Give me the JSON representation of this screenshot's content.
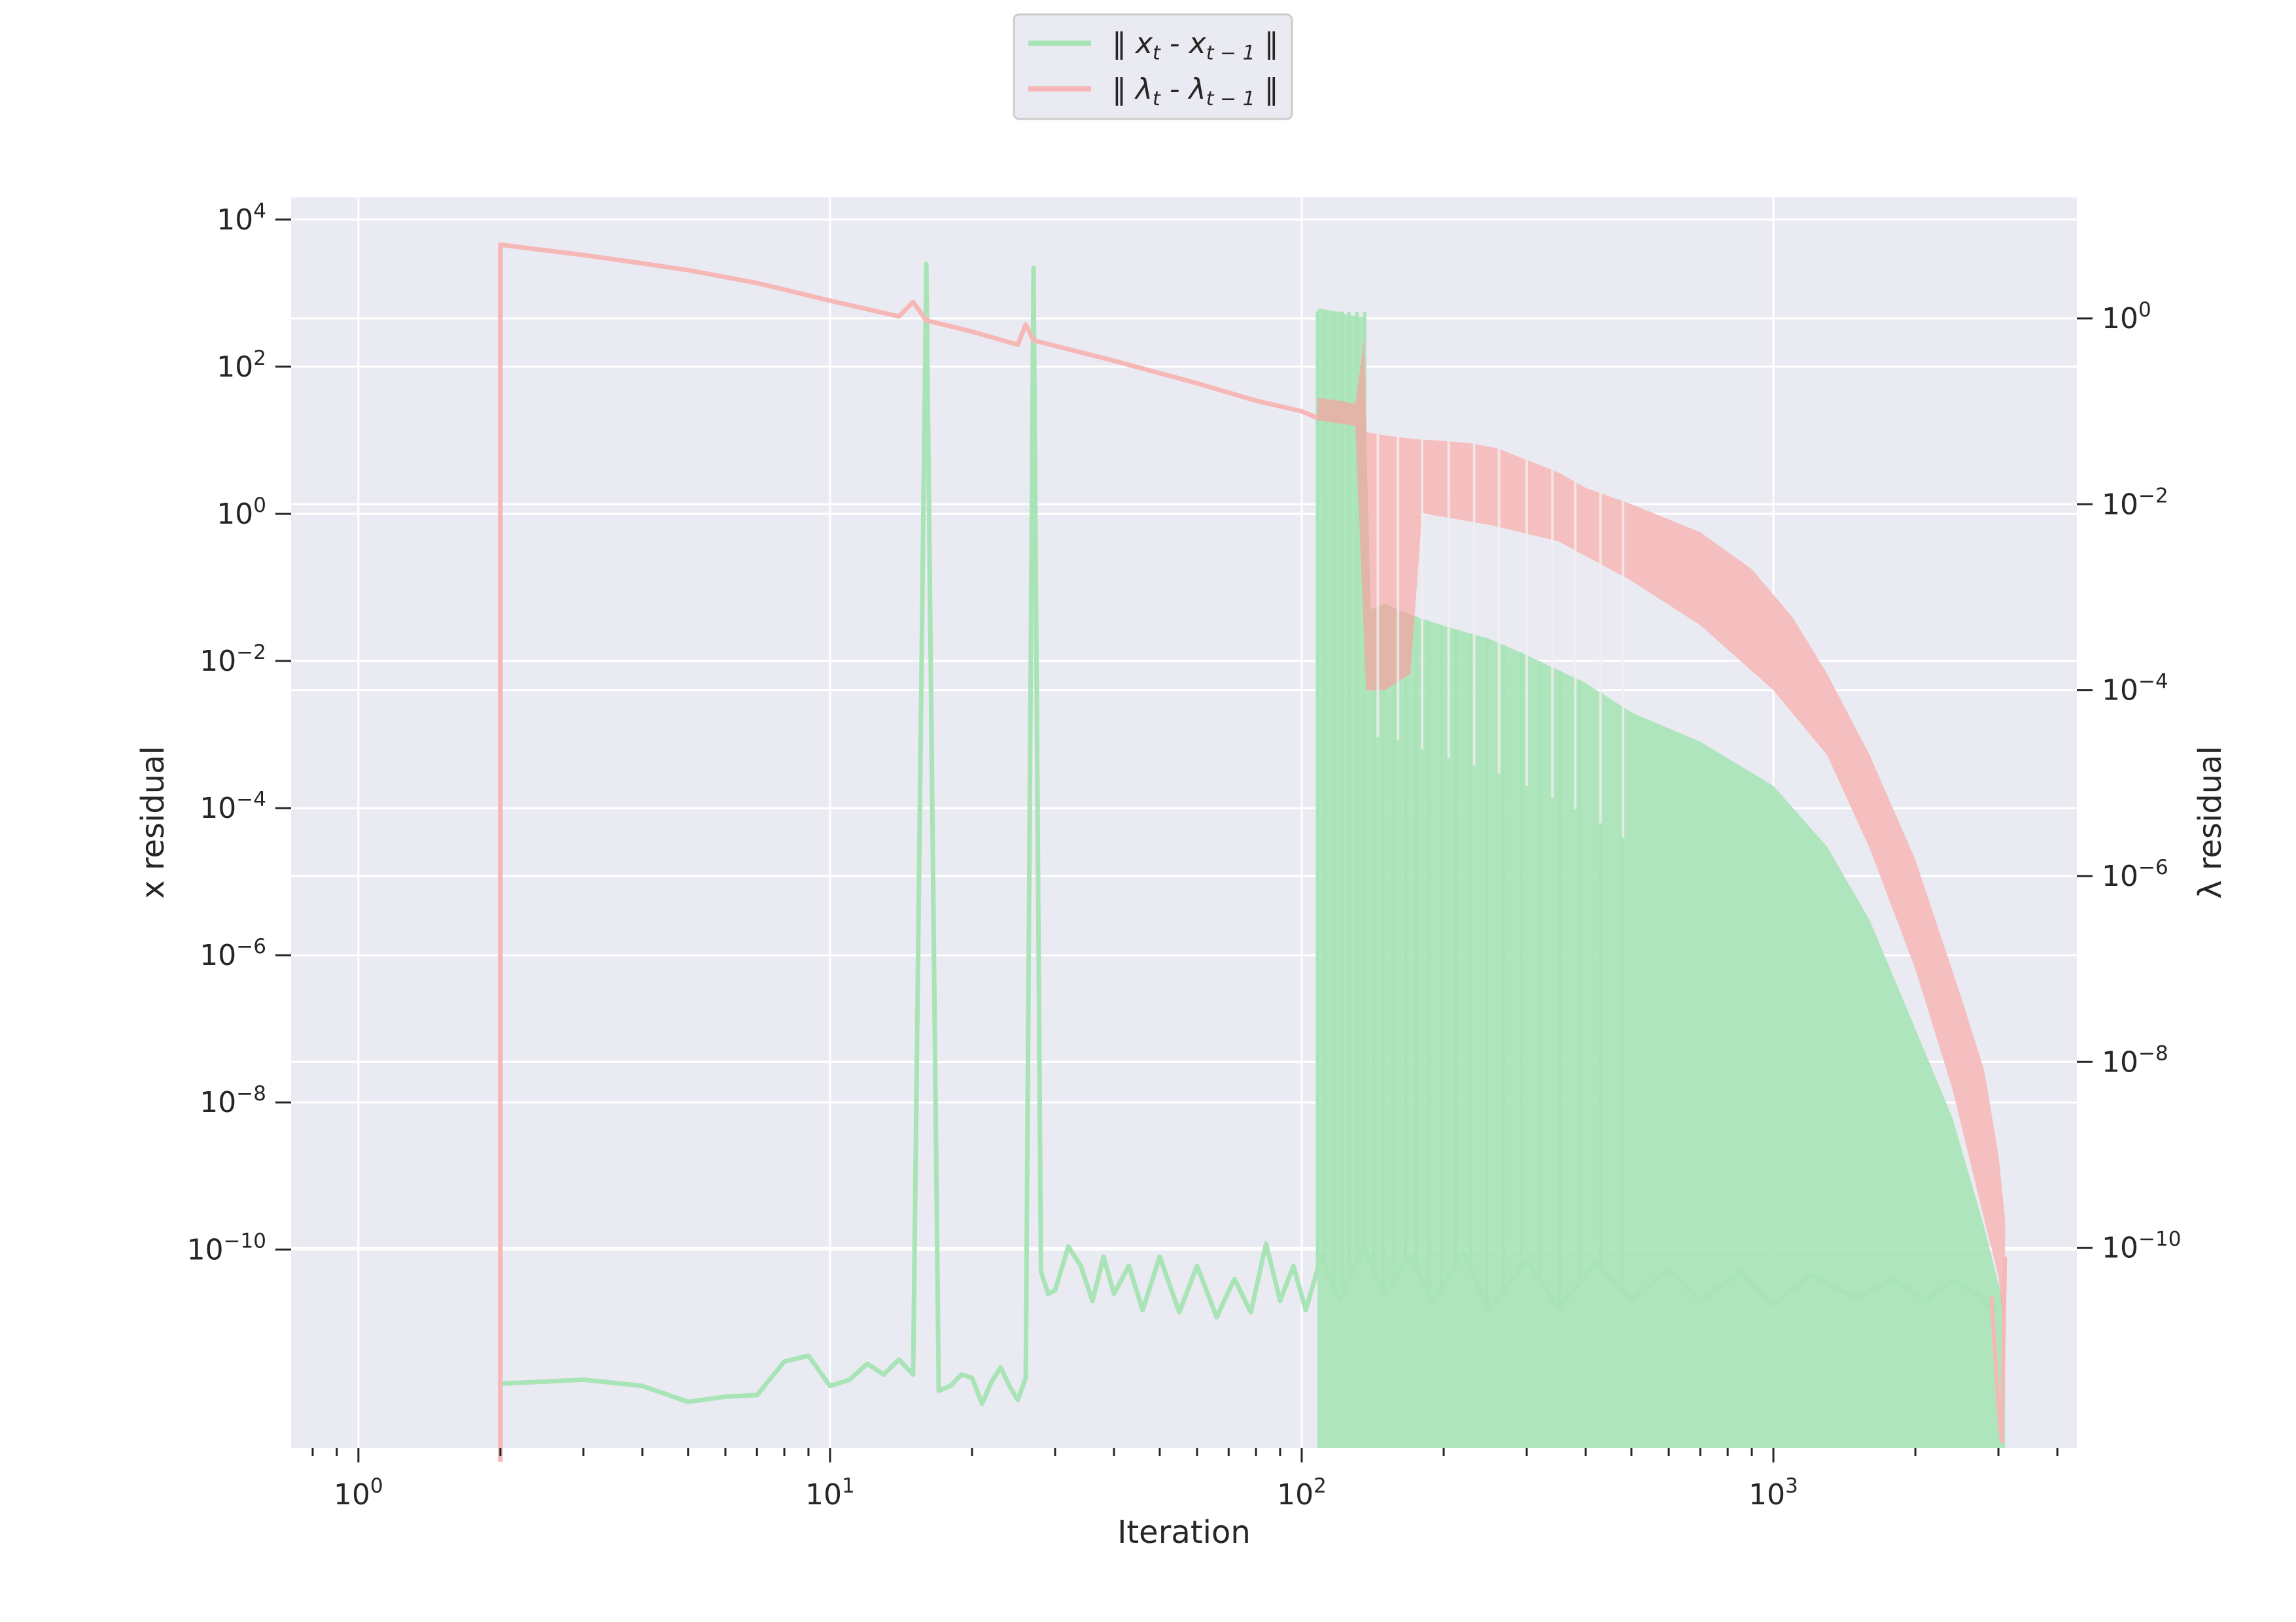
{
  "chart_data": {
    "type": "line",
    "title": "",
    "xlabel": "Iteration",
    "ylabel_left": "x residual",
    "ylabel_right": "λ residual",
    "x_scale": "log",
    "y_scale": "log",
    "xlim": [
      0.72,
      4400
    ],
    "ylim_left": [
      2e-13,
      20000.0
    ],
    "ylim_right": [
      7e-13,
      20
    ],
    "grid": true,
    "legend_position": "top-center",
    "x_ticks": [
      {
        "base": "10",
        "exp": "0",
        "value": 1
      },
      {
        "base": "10",
        "exp": "1",
        "value": 10
      },
      {
        "base": "10",
        "exp": "2",
        "value": 100
      },
      {
        "base": "10",
        "exp": "3",
        "value": 1000
      }
    ],
    "y_left_ticks": [
      {
        "base": "10",
        "exp": "4",
        "value": 10000.0
      },
      {
        "base": "10",
        "exp": "2",
        "value": 100.0
      },
      {
        "base": "10",
        "exp": "0",
        "value": 1
      },
      {
        "base": "10",
        "exp": "−2",
        "value": 0.01
      },
      {
        "base": "10",
        "exp": "−4",
        "value": 0.0001
      },
      {
        "base": "10",
        "exp": "−6",
        "value": 1e-06
      },
      {
        "base": "10",
        "exp": "−8",
        "value": 1e-08
      },
      {
        "base": "10",
        "exp": "−10",
        "value": 1e-10
      }
    ],
    "y_right_ticks": [
      {
        "base": "10",
        "exp": "0",
        "value": 1
      },
      {
        "base": "10",
        "exp": "−2",
        "value": 0.01
      },
      {
        "base": "10",
        "exp": "−4",
        "value": 0.0001
      },
      {
        "base": "10",
        "exp": "−6",
        "value": 1e-06
      },
      {
        "base": "10",
        "exp": "−8",
        "value": 1e-08
      },
      {
        "base": "10",
        "exp": "−10",
        "value": 1e-10
      }
    ],
    "series": [
      {
        "name": "‖ xt - xt−1 ‖",
        "name_parts": {
          "pre": "‖ x",
          "sub1": "t",
          "mid": " - x",
          "sub2": "t − 1",
          "post": " ‖"
        },
        "axis": "left",
        "color": "#a8e4b6",
        "baseline_line": [
          [
            2,
            1.5e-12
          ],
          [
            3,
            1.7e-12
          ],
          [
            4,
            1.4e-12
          ],
          [
            5,
            8.5e-13
          ],
          [
            6,
            1e-12
          ],
          [
            7,
            1.05e-12
          ],
          [
            8,
            3e-12
          ],
          [
            9,
            3.6e-12
          ],
          [
            10,
            1.4e-12
          ],
          [
            11,
            1.7e-12
          ],
          [
            12,
            2.8e-12
          ],
          [
            13,
            2e-12
          ],
          [
            14,
            3.2e-12
          ],
          [
            15,
            2e-12
          ],
          [
            16,
            2500
          ],
          [
            17,
            1.2e-12
          ],
          [
            18,
            1.4e-12
          ],
          [
            19,
            2e-12
          ],
          [
            20,
            1.8e-12
          ],
          [
            21,
            8e-13
          ],
          [
            22,
            1.6e-12
          ],
          [
            23,
            2.5e-12
          ],
          [
            24,
            1.4e-12
          ],
          [
            25,
            9e-13
          ],
          [
            26,
            1.8e-12
          ],
          [
            27,
            2200
          ],
          [
            28,
            5e-11
          ],
          [
            29,
            2.5e-11
          ],
          [
            30,
            2.8e-11
          ],
          [
            32,
            1.1e-10
          ],
          [
            34,
            6e-11
          ],
          [
            36,
            2e-11
          ],
          [
            38,
            8e-11
          ],
          [
            40,
            2.5e-11
          ],
          [
            43,
            6e-11
          ],
          [
            46,
            1.5e-11
          ],
          [
            50,
            8e-11
          ],
          [
            55,
            1.4e-11
          ],
          [
            60,
            6e-11
          ],
          [
            66,
            1.2e-11
          ],
          [
            72,
            4e-11
          ],
          [
            78,
            1.4e-11
          ],
          [
            84,
            1.2e-10
          ],
          [
            90,
            2e-11
          ],
          [
            96,
            6e-11
          ],
          [
            102,
            1.5e-11
          ],
          [
            110,
            8e-11
          ],
          [
            120,
            2e-11
          ],
          [
            135,
            1.1e-10
          ],
          [
            150,
            2.5e-11
          ],
          [
            170,
            8e-11
          ],
          [
            190,
            2e-11
          ],
          [
            220,
            9e-11
          ],
          [
            250,
            1.5e-11
          ],
          [
            300,
            7e-11
          ],
          [
            350,
            1.6e-11
          ],
          [
            420,
            6.5e-11
          ],
          [
            500,
            2e-11
          ],
          [
            600,
            5.5e-11
          ],
          [
            700,
            2e-11
          ],
          [
            850,
            5e-11
          ],
          [
            1000,
            1.8e-11
          ],
          [
            1200,
            4.5e-11
          ],
          [
            1500,
            2.2e-11
          ],
          [
            1800,
            4e-11
          ],
          [
            2100,
            2e-11
          ],
          [
            2400,
            3.8e-11
          ],
          [
            2700,
            2.5e-11
          ],
          [
            2900,
            1.5e-11
          ],
          [
            3000,
            1.8e-11
          ]
        ],
        "envelope_top": [
          [
            108,
            600
          ],
          [
            110,
            620
          ],
          [
            115,
            580
          ],
          [
            120,
            560
          ],
          [
            125,
            500
          ],
          [
            130,
            490
          ],
          [
            135,
            470
          ],
          [
            140,
            0.05
          ],
          [
            150,
            0.06
          ],
          [
            160,
            0.05
          ],
          [
            175,
            0.04
          ],
          [
            200,
            0.03
          ],
          [
            250,
            0.02
          ],
          [
            300,
            0.012
          ],
          [
            400,
            0.005
          ],
          [
            500,
            0.002
          ],
          [
            700,
            0.0008
          ],
          [
            1000,
            0.0002
          ],
          [
            1300,
            3e-05
          ],
          [
            1600,
            3e-06
          ],
          [
            2000,
            1e-07
          ],
          [
            2400,
            6e-09
          ],
          [
            2800,
            2e-10
          ],
          [
            3100,
            1.5e-11
          ]
        ],
        "spike_iterations": [
          108,
          112,
          117,
          122,
          126,
          131,
          136,
          142,
          149,
          157,
          166,
          175,
          186,
          198,
          212,
          228,
          247,
          268,
          292,
          320,
          352,
          388,
          430,
          478
        ]
      },
      {
        "name": "‖ λt - λt−1 ‖",
        "name_parts": {
          "pre": "‖ λ",
          "sub1": "t",
          "mid": " - λ",
          "sub2": "t − 1",
          "post": " ‖"
        },
        "axis": "right",
        "color": "#f6b7b7",
        "overlap_color": "#dfb4a6",
        "main_line": [
          [
            2,
            5e-13
          ],
          [
            2,
            6.2
          ],
          [
            3,
            4.8
          ],
          [
            4,
            3.9
          ],
          [
            5,
            3.3
          ],
          [
            7,
            2.4
          ],
          [
            10,
            1.55
          ],
          [
            14,
            1.05
          ],
          [
            15,
            1.5
          ],
          [
            16,
            0.95
          ],
          [
            20,
            0.72
          ],
          [
            25,
            0.52
          ],
          [
            26,
            0.86
          ],
          [
            27,
            0.58
          ],
          [
            40,
            0.35
          ],
          [
            60,
            0.2
          ],
          [
            80,
            0.13
          ],
          [
            100,
            0.1
          ],
          [
            108,
            0.085
          ]
        ],
        "envelope_top": [
          [
            108,
            0.14
          ],
          [
            120,
            0.13
          ],
          [
            130,
            0.12
          ],
          [
            136,
            0.65
          ],
          [
            137,
            0.06
          ],
          [
            150,
            0.055
          ],
          [
            175,
            0.05
          ],
          [
            200,
            0.048
          ],
          [
            230,
            0.045
          ],
          [
            260,
            0.04
          ],
          [
            300,
            0.03
          ],
          [
            350,
            0.022
          ],
          [
            400,
            0.015
          ],
          [
            500,
            0.01
          ],
          [
            700,
            0.005
          ],
          [
            900,
            0.002
          ],
          [
            1100,
            0.0006
          ],
          [
            1300,
            0.00015
          ],
          [
            1600,
            2e-05
          ],
          [
            2000,
            1.5e-06
          ],
          [
            2500,
            5e-08
          ],
          [
            2800,
            8e-09
          ],
          [
            3000,
            1e-09
          ],
          [
            3100,
            2e-10
          ]
        ],
        "envelope_bottom": [
          [
            108,
            0.08
          ],
          [
            130,
            0.07
          ],
          [
            137,
            0.0001
          ],
          [
            150,
            0.0001
          ],
          [
            170,
            0.00015
          ],
          [
            180,
            0.008
          ],
          [
            250,
            0.006
          ],
          [
            350,
            0.004
          ],
          [
            500,
            0.0015
          ],
          [
            700,
            0.0005
          ],
          [
            1000,
            0.0001
          ],
          [
            1300,
            2e-05
          ],
          [
            1600,
            2e-06
          ],
          [
            2000,
            1e-07
          ],
          [
            2400,
            5e-09
          ],
          [
            2800,
            2e-10
          ],
          [
            3000,
            5e-11
          ],
          [
            3100,
            1e-11
          ]
        ],
        "tail_line": [
          [
            2900,
            3e-11
          ],
          [
            3000,
            2e-12
          ],
          [
            3050,
            8e-13
          ],
          [
            3100,
            8e-11
          ]
        ]
      }
    ]
  }
}
